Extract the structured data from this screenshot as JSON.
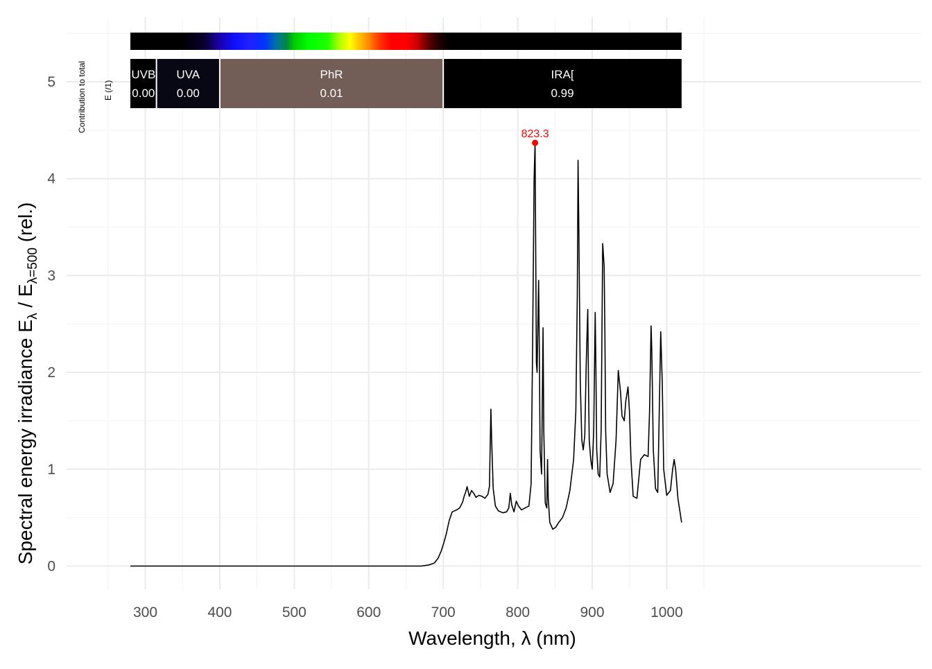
{
  "chart_data": {
    "type": "line",
    "xlabel": "Wavelength, λ (nm)",
    "ylabel_parts": {
      "prefix": "Spectral  energy  irradiance  E",
      "sub1": "λ",
      "mid": " / E",
      "sub2": "λ=500",
      "suffix": "  (rel.)"
    },
    "xlim": [
      280,
      1020
    ],
    "ylim": [
      0,
      5.5
    ],
    "x_ticks": [
      300,
      400,
      500,
      600,
      700,
      800,
      900,
      1000
    ],
    "y_ticks": [
      0,
      1,
      2,
      3,
      4,
      5
    ],
    "grid": true,
    "line_color": "#000000",
    "peak": {
      "x": 823.3,
      "y": 4.37,
      "label": "823.3",
      "color": "#ff0000"
    },
    "bands": [
      {
        "name": "UVB",
        "value": "0.00",
        "from": 280,
        "to": 315,
        "color": "#000000"
      },
      {
        "name": "UVA",
        "value": "0.00",
        "from": 315,
        "to": 400,
        "color": "#080815"
      },
      {
        "name": "PhR",
        "value": "0.01",
        "from": 400,
        "to": 700,
        "color": "#735e57"
      },
      {
        "name": "IRA[",
        "value": "0.99",
        "from": 700,
        "to": 1020,
        "color": "#000000"
      }
    ],
    "contribution_label": [
      "Contribution  to  total",
      "E  (/1)"
    ],
    "series": [
      {
        "x": [
          280,
          300,
          400,
          500,
          600,
          650,
          670,
          680,
          688,
          693,
          697,
          700,
          704,
          708,
          712,
          718,
          722,
          726,
          728,
          730,
          732,
          735,
          738,
          741,
          744,
          748,
          752,
          756,
          760,
          762,
          764,
          765,
          767,
          770,
          774,
          780,
          785,
          788,
          790,
          792,
          795,
          798,
          801,
          805,
          810,
          815,
          818,
          820,
          822,
          823.3,
          825,
          826,
          828,
          829,
          830,
          832,
          834,
          835,
          837,
          839,
          840,
          841,
          843,
          847,
          851,
          855,
          860,
          865,
          870,
          875,
          878,
          880,
          881,
          882,
          884,
          886,
          888,
          890,
          892,
          894,
          895,
          896,
          898,
          900,
          902,
          904,
          905,
          906,
          908,
          910,
          912,
          914,
          916,
          917,
          918,
          920,
          924,
          928,
          932,
          935,
          938,
          940,
          943,
          945,
          948,
          950,
          952,
          955,
          960,
          965,
          970,
          975,
          977,
          979,
          980,
          982,
          985,
          988,
          990,
          992,
          994,
          996,
          1000,
          1005,
          1008,
          1010,
          1012,
          1015,
          1020
        ],
        "y": [
          0,
          0,
          0,
          0,
          0,
          0,
          0,
          0.01,
          0.03,
          0.08,
          0.15,
          0.22,
          0.33,
          0.47,
          0.56,
          0.58,
          0.6,
          0.66,
          0.72,
          0.76,
          0.82,
          0.72,
          0.78,
          0.75,
          0.71,
          0.73,
          0.72,
          0.7,
          0.74,
          0.82,
          1.62,
          1.3,
          0.8,
          0.62,
          0.57,
          0.55,
          0.56,
          0.6,
          0.75,
          0.63,
          0.56,
          0.67,
          0.62,
          0.58,
          0.6,
          0.62,
          0.85,
          2.3,
          4.0,
          4.37,
          2.1,
          2.0,
          2.95,
          2.2,
          1.2,
          0.95,
          2.46,
          1.4,
          0.65,
          0.6,
          1.1,
          0.7,
          0.45,
          0.38,
          0.4,
          0.45,
          0.5,
          0.6,
          0.78,
          1.1,
          1.6,
          2.8,
          4.19,
          3.5,
          1.9,
          1.3,
          1.2,
          1.35,
          2.1,
          2.65,
          1.9,
          1.3,
          1.1,
          1.0,
          1.4,
          2.62,
          2.0,
          1.2,
          0.95,
          0.92,
          1.4,
          3.33,
          3.1,
          2.4,
          1.4,
          0.95,
          0.76,
          0.85,
          1.3,
          2.02,
          1.8,
          1.55,
          1.5,
          1.7,
          1.85,
          1.6,
          1.1,
          0.72,
          0.7,
          1.1,
          1.15,
          1.13,
          1.6,
          2.48,
          2.2,
          1.2,
          0.8,
          0.76,
          1.6,
          2.42,
          1.9,
          1.0,
          0.73,
          0.78,
          1.0,
          1.1,
          1.0,
          0.7,
          0.45
        ]
      }
    ]
  }
}
